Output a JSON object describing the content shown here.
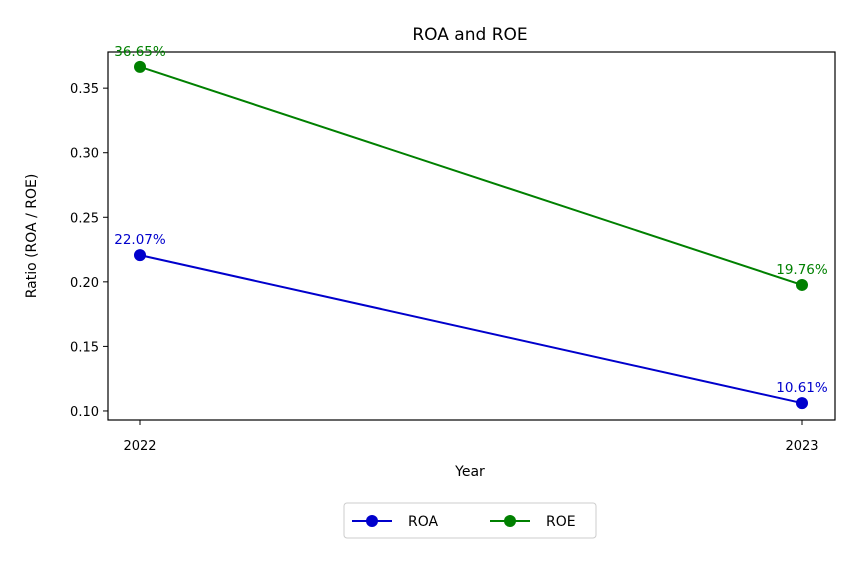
{
  "chart_data": {
    "type": "line",
    "title": "ROA and ROE",
    "xlabel": "Year",
    "ylabel": "Ratio (ROA / ROE)",
    "categories": [
      "2022",
      "2023"
    ],
    "ylim": [
      0.093,
      0.378
    ],
    "yticks": [
      "0.10",
      "0.15",
      "0.20",
      "0.25",
      "0.30",
      "0.35"
    ],
    "ytick_values": [
      0.1,
      0.15,
      0.2,
      0.25,
      0.3,
      0.35
    ],
    "grid": false,
    "legend_position": "bottom-center",
    "series": [
      {
        "name": "ROA",
        "color": "#0000cc",
        "values": [
          0.2207,
          0.1061
        ],
        "labels": [
          "22.07%",
          "10.61%"
        ]
      },
      {
        "name": "ROE",
        "color": "#008000",
        "values": [
          0.3665,
          0.1976
        ],
        "labels": [
          "36.65%",
          "19.76%"
        ]
      }
    ]
  }
}
